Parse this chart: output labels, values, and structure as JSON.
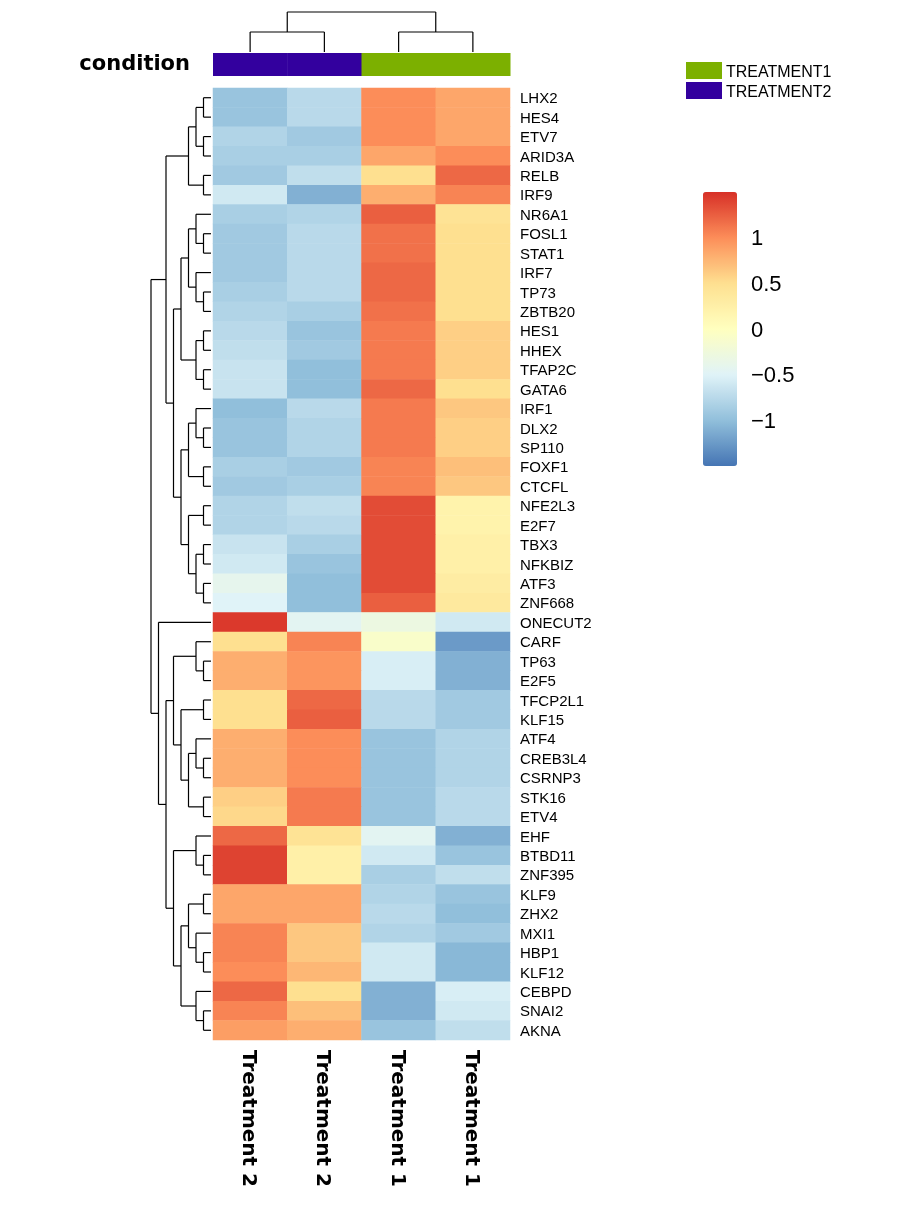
{
  "chart_data": {
    "type": "heatmap",
    "categories": [
      "Treatment 2",
      "Treatment 2",
      "Treatment 1",
      "Treatment 1"
    ],
    "y_categories": [
      "LHX2",
      "HES4",
      "ETV7",
      "ARID3A",
      "RELB",
      "IRF9",
      "NR6A1",
      "FOSL1",
      "STAT1",
      "IRF7",
      "TP73",
      "ZBTB20",
      "HES1",
      "HHEX",
      "TFAP2C",
      "GATA6",
      "IRF1",
      "DLX2",
      "SP110",
      "FOXF1",
      "CTCFL",
      "NFE2L3",
      "E2F7",
      "TBX3",
      "NFKBIZ",
      "ATF3",
      "ZNF668",
      "ONECUT2",
      "CARF",
      "TP63",
      "E2F5",
      "TFCP2L1",
      "KLF15",
      "ATF4",
      "CREB3L4",
      "CSRNP3",
      "STK16",
      "ETV4",
      "EHF",
      "BTBD11",
      "ZNF395",
      "KLF9",
      "ZHX2",
      "MXI1",
      "HBP1",
      "KLF12",
      "CEBPD",
      "SNAI2",
      "AKNA"
    ],
    "cells": [
      [
        -0.95,
        -0.75,
        1.0,
        0.85
      ],
      [
        -0.95,
        -0.75,
        1.0,
        0.85
      ],
      [
        -0.8,
        -0.9,
        1.0,
        0.85
      ],
      [
        -0.85,
        -0.85,
        0.85,
        1.0
      ],
      [
        -0.9,
        -0.7,
        0.5,
        1.2
      ],
      [
        -0.6,
        -1.1,
        0.8,
        1.05
      ],
      [
        -0.85,
        -0.8,
        1.25,
        0.45
      ],
      [
        -0.9,
        -0.75,
        1.15,
        0.5
      ],
      [
        -0.9,
        -0.75,
        1.15,
        0.5
      ],
      [
        -0.9,
        -0.75,
        1.2,
        0.5
      ],
      [
        -0.85,
        -0.75,
        1.2,
        0.5
      ],
      [
        -0.8,
        -0.85,
        1.15,
        0.5
      ],
      [
        -0.75,
        -0.95,
        1.1,
        0.6
      ],
      [
        -0.7,
        -0.9,
        1.1,
        0.6
      ],
      [
        -0.65,
        -1.0,
        1.1,
        0.6
      ],
      [
        -0.65,
        -1.0,
        1.2,
        0.5
      ],
      [
        -1.0,
        -0.75,
        1.1,
        0.65
      ],
      [
        -0.95,
        -0.8,
        1.1,
        0.6
      ],
      [
        -0.95,
        -0.8,
        1.1,
        0.6
      ],
      [
        -0.85,
        -0.9,
        1.05,
        0.7
      ],
      [
        -0.9,
        -0.85,
        1.05,
        0.65
      ],
      [
        -0.8,
        -0.7,
        1.35,
        0.2
      ],
      [
        -0.8,
        -0.75,
        1.35,
        0.2
      ],
      [
        -0.65,
        -0.85,
        1.35,
        0.25
      ],
      [
        -0.6,
        -0.95,
        1.35,
        0.25
      ],
      [
        -0.4,
        -1.0,
        1.35,
        0.3
      ],
      [
        -0.5,
        -1.0,
        1.25,
        0.35
      ],
      [
        1.45,
        -0.45,
        -0.3,
        -0.6
      ],
      [
        0.5,
        1.05,
        -0.1,
        -1.25
      ],
      [
        0.8,
        0.95,
        -0.55,
        -1.1
      ],
      [
        0.8,
        0.95,
        -0.55,
        -1.1
      ],
      [
        0.5,
        1.2,
        -0.75,
        -0.9
      ],
      [
        0.5,
        1.25,
        -0.75,
        -0.9
      ],
      [
        0.8,
        1.0,
        -0.95,
        -0.8
      ],
      [
        0.8,
        1.0,
        -0.95,
        -0.8
      ],
      [
        0.8,
        1.0,
        -0.95,
        -0.8
      ],
      [
        0.6,
        1.1,
        -0.95,
        -0.75
      ],
      [
        0.55,
        1.1,
        -0.95,
        -0.75
      ],
      [
        1.2,
        0.45,
        -0.45,
        -1.1
      ],
      [
        1.4,
        0.25,
        -0.6,
        -0.95
      ],
      [
        1.4,
        0.25,
        -0.85,
        -0.7
      ],
      [
        0.85,
        0.85,
        -0.8,
        -0.95
      ],
      [
        0.85,
        0.85,
        -0.75,
        -1.0
      ],
      [
        1.05,
        0.65,
        -0.8,
        -0.9
      ],
      [
        1.05,
        0.65,
        -0.6,
        -1.05
      ],
      [
        1.0,
        0.75,
        -0.6,
        -1.05
      ],
      [
        1.2,
        0.5,
        -1.1,
        -0.55
      ],
      [
        1.05,
        0.7,
        -1.1,
        -0.6
      ],
      [
        0.9,
        0.8,
        -0.95,
        -0.7
      ]
    ],
    "clim": [
      -1.5,
      1.5
    ],
    "cticks": [
      {
        "value": -1,
        "label": "−1"
      },
      {
        "value": -0.5,
        "label": "−0.5"
      },
      0,
      0.5,
      1
    ],
    "annotations": [
      "condition",
      "TREATMENT1",
      "TREATMENT2"
    ]
  }
}
